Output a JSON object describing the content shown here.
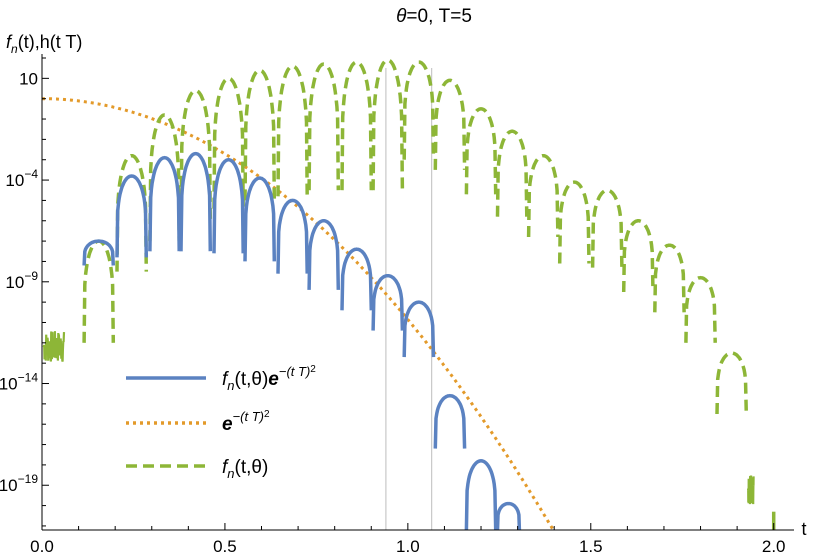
{
  "chart_data": {
    "type": "line",
    "title": "θ=0, T=5",
    "ylabel": "fn(t),h(t T)",
    "ylabel_parts": {
      "f": "f",
      "sub": "n",
      "rest": "(t),h(t T)"
    },
    "xlabel": "t",
    "xlim": [
      0,
      2.05
    ],
    "ylim_log10": [
      -21.2,
      2.0
    ],
    "y_scale": "log",
    "x_ticks": [
      0.0,
      0.5,
      1.0,
      1.5,
      2.0
    ],
    "x_tick_labels": [
      "0.0",
      "0.5",
      "1.0",
      "1.5",
      "2.0"
    ],
    "y_ticks_exp": [
      1,
      -4,
      -9,
      -14,
      -19
    ],
    "y_tick_labels": [
      {
        "base": "10",
        "exp": ""
      },
      {
        "base": "10",
        "exp": "−4"
      },
      {
        "base": "10",
        "exp": "−9"
      },
      {
        "base": "10",
        "exp": "−14"
      },
      {
        "base": "10",
        "exp": "−19"
      }
    ],
    "vertical_lines": [
      0.94,
      1.065
    ],
    "legend_position": "lower-left",
    "series": [
      {
        "key": "fn_exp",
        "style": "solid",
        "color": "#5b82c1",
        "legend": {
          "f": "f",
          "sub": "n",
          "mid": "(t,θ)",
          "e": "e",
          "sup": "−(t T)",
          "sup2": "2"
        },
        "lobes": [
          {
            "x0": 0.115,
            "x1": 0.195,
            "peak": -7.0,
            "bottom": -8.2
          },
          {
            "x0": 0.205,
            "x1": 0.285,
            "peak": -3.8,
            "bottom": -7.8
          },
          {
            "x0": 0.295,
            "x1": 0.375,
            "peak": -2.9,
            "bottom": -7.5
          },
          {
            "x0": 0.38,
            "x1": 0.46,
            "peak": -2.7,
            "bottom": -7.5
          },
          {
            "x0": 0.47,
            "x1": 0.55,
            "peak": -3.0,
            "bottom": -7.6
          },
          {
            "x0": 0.555,
            "x1": 0.635,
            "peak": -3.9,
            "bottom": -8.0
          },
          {
            "x0": 0.645,
            "x1": 0.725,
            "peak": -5.0,
            "bottom": -8.6
          },
          {
            "x0": 0.73,
            "x1": 0.81,
            "peak": -6.0,
            "bottom": -9.4
          },
          {
            "x0": 0.82,
            "x1": 0.9,
            "peak": -7.4,
            "bottom": -10.4
          },
          {
            "x0": 0.905,
            "x1": 0.985,
            "peak": -8.7,
            "bottom": -11.4
          },
          {
            "x0": 0.99,
            "x1": 1.07,
            "peak": -10.0,
            "bottom": -12.7
          },
          {
            "x0": 1.075,
            "x1": 1.155,
            "peak": -14.6,
            "bottom": -17.2
          },
          {
            "x0": 1.16,
            "x1": 1.24,
            "peak": -17.8,
            "bottom": -21.2
          },
          {
            "x0": 1.245,
            "x1": 1.305,
            "peak": -19.9,
            "bottom": -21.2
          }
        ]
      },
      {
        "key": "gauss",
        "style": "dotted",
        "color": "#e39a2a",
        "legend": {
          "e": "e",
          "sup": "−(t T)",
          "sup2": "2"
        },
        "function": "exp(-(t*T)^2)",
        "T": 5
      },
      {
        "key": "fn",
        "style": "dashed",
        "color": "#8db637",
        "legend": {
          "f": "f",
          "sub": "n",
          "mid": "(t,θ)"
        },
        "lobes": [
          {
            "x0": 0.115,
            "x1": 0.195,
            "peak": -7.0,
            "bottom": -12.0
          },
          {
            "x0": 0.205,
            "x1": 0.285,
            "peak": -2.8,
            "bottom": -8.5
          },
          {
            "x0": 0.295,
            "x1": 0.375,
            "peak": -0.8,
            "bottom": -7.0
          },
          {
            "x0": 0.38,
            "x1": 0.46,
            "peak": 0.4,
            "bottom": -6.0
          },
          {
            "x0": 0.47,
            "x1": 0.55,
            "peak": 1.0,
            "bottom": -5.4
          },
          {
            "x0": 0.555,
            "x1": 0.635,
            "peak": 1.4,
            "bottom": -5.0
          },
          {
            "x0": 0.645,
            "x1": 0.725,
            "peak": 1.6,
            "bottom": -4.8
          },
          {
            "x0": 0.73,
            "x1": 0.81,
            "peak": 1.7,
            "bottom": -4.5
          },
          {
            "x0": 0.82,
            "x1": 0.9,
            "peak": 1.8,
            "bottom": -4.5
          },
          {
            "x0": 0.905,
            "x1": 0.985,
            "peak": 1.9,
            "bottom": -4.5
          },
          {
            "x0": 0.99,
            "x1": 1.07,
            "peak": 1.8,
            "bottom": -3.0
          },
          {
            "x0": 1.075,
            "x1": 1.155,
            "peak": 0.9,
            "bottom": -3.5
          },
          {
            "x0": 1.16,
            "x1": 1.24,
            "peak": -0.5,
            "bottom": -4.7
          },
          {
            "x0": 1.245,
            "x1": 1.325,
            "peak": -1.6,
            "bottom": -5.8
          },
          {
            "x0": 1.33,
            "x1": 1.41,
            "peak": -2.8,
            "bottom": -6.8
          },
          {
            "x0": 1.415,
            "x1": 1.495,
            "peak": -4.1,
            "bottom": -8.1
          },
          {
            "x0": 1.505,
            "x1": 1.585,
            "peak": -4.5,
            "bottom": -8.3
          },
          {
            "x0": 1.59,
            "x1": 1.67,
            "peak": -6.0,
            "bottom": -9.5
          },
          {
            "x0": 1.675,
            "x1": 1.755,
            "peak": -7.2,
            "bottom": -10.5
          },
          {
            "x0": 1.76,
            "x1": 1.84,
            "peak": -8.8,
            "bottom": -12.0
          },
          {
            "x0": 1.845,
            "x1": 1.925,
            "peak": -12.5,
            "bottom": -15.5
          }
        ],
        "noise_left": {
          "x0": 0.005,
          "x1": 0.06,
          "low": -13.0,
          "high": -11.4
        },
        "noise_right": {
          "x0": 1.93,
          "x1": 1.945,
          "low": -20.0,
          "high": -18.5
        },
        "tail_segments": [
          {
            "x": 2.0,
            "y0": -20.3,
            "y1": -21.2
          }
        ]
      }
    ]
  }
}
